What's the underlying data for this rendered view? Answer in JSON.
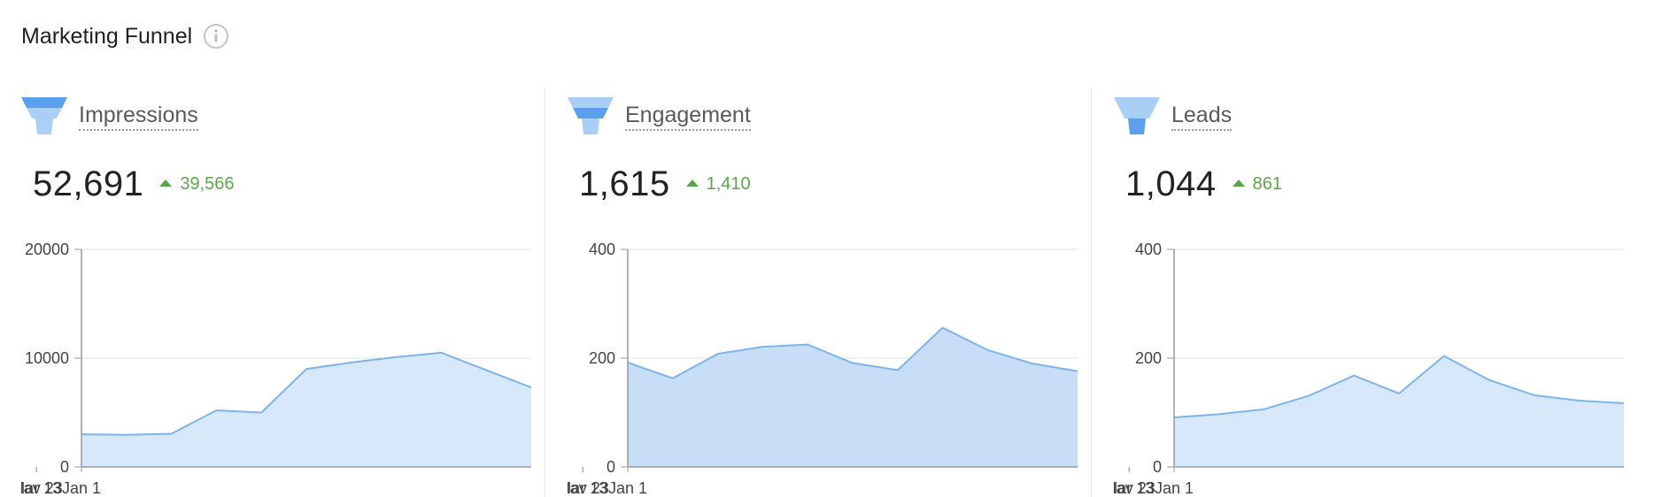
{
  "header": {
    "title": "Marketing Funnel",
    "info_icon": "info-circle-icon"
  },
  "colors": {
    "line": "#7db4ea",
    "fill_light": "#d7e8fa",
    "fill_mid": "#c8def7",
    "delta": "#5aa74a"
  },
  "panels": [
    {
      "name": "Impressions",
      "icon": "funnel-icon",
      "value": "52,691",
      "delta": "39,566",
      "delta_dir": "up-icon"
    },
    {
      "name": "Engagement",
      "icon": "funnel-icon",
      "value": "1,615",
      "delta": "1,410",
      "delta_dir": "up-icon"
    },
    {
      "name": "Leads",
      "icon": "funnel-icon",
      "value": "1,044",
      "delta": "861",
      "delta_dir": "up-icon"
    }
  ],
  "chart_data": [
    {
      "type": "area",
      "x": [
        "Jan 1",
        "Jan 22",
        "Feb 12",
        "Mar 5",
        "Mar 26",
        "Apr 16",
        "May 7",
        "May 28",
        "Jun 18",
        "Jul 9",
        "Jul 30"
      ],
      "values": [
        3000,
        2950,
        3050,
        5200,
        5000,
        9000,
        9600,
        10100,
        10500,
        8900,
        7300
      ],
      "xticks": [
        "Jan 1",
        "Mar 13",
        "May 23"
      ],
      "ytick_labels": [
        "0",
        "10000",
        "20000"
      ],
      "ylim": [
        0,
        20000
      ],
      "grid": true
    },
    {
      "type": "area",
      "x": [
        "Jan 1",
        "Jan 22",
        "Feb 12",
        "Mar 5",
        "Mar 26",
        "Apr 16",
        "May 7",
        "May 28",
        "Jun 18",
        "Jul 9",
        "Jul 30"
      ],
      "values": [
        192,
        163,
        208,
        221,
        225,
        191,
        178,
        256,
        215,
        190,
        176
      ],
      "xticks": [
        "Jan 1",
        "Mar 13",
        "May 23"
      ],
      "ytick_labels": [
        "0",
        "200",
        "400"
      ],
      "ylim": [
        0,
        400
      ],
      "grid": true
    },
    {
      "type": "area",
      "x": [
        "Jan 1",
        "Jan 22",
        "Feb 12",
        "Mar 5",
        "Mar 26",
        "Apr 16",
        "May 7",
        "May 28",
        "Jun 18",
        "Jul 9",
        "Jul 30"
      ],
      "values": [
        91,
        97,
        106,
        131,
        168,
        135,
        204,
        160,
        132,
        122,
        117
      ],
      "xticks": [
        "Jan 1",
        "Mar 13",
        "May 23"
      ],
      "ytick_labels": [
        "0",
        "200",
        "400"
      ],
      "ylim": [
        0,
        400
      ],
      "grid": true
    }
  ]
}
